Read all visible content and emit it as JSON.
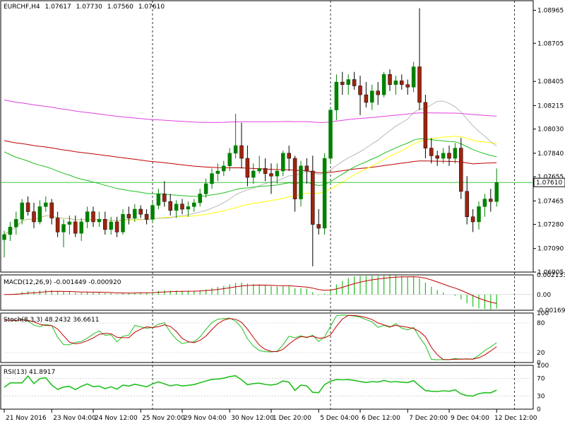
{
  "chart_data": {
    "type": "candlestick",
    "colors": {
      "bull": "#008000",
      "bear": "#a0240f",
      "frame": "#000000",
      "sma_fast": "#a9a9a9",
      "sma_mid": "#ffff00",
      "sma_slow": "#c00000",
      "sma_long": "#e040e0",
      "ema": "#20c020",
      "macd_hist": "#20c020",
      "macd_signal": "#c00000",
      "stoch_main": "#20c020",
      "stoch_signal": "#c00000",
      "rsi": "#20c020",
      "price_line": "#20c020"
    },
    "header": {
      "symbol": "EURCHF,H4",
      "open": "1.07617",
      "high": "1.07730",
      "low": "1.07560",
      "close": "1.07610"
    },
    "price_axis": {
      "min": 1.06905,
      "max": 1.0904,
      "ticks": [
        "1.08965",
        "1.08705",
        "1.08405",
        "1.08215",
        "1.08030",
        "1.07840",
        "1.07655",
        "1.07465",
        "1.07280",
        "1.07090",
        "1.06905"
      ],
      "current": "1.07610"
    },
    "x_labels": [
      "21 Nov 2016",
      "23 Nov 04:00",
      "24 Nov 12:00",
      "25 Nov 20:00",
      "29 Nov 04:00",
      "30 Nov 12:00",
      "1 Dec 20:00",
      "5 Dec 04:00",
      "6 Dec 12:00",
      "7 Dec 20:00",
      "9 Dec 04:00",
      "12 Dec 12:00"
    ],
    "period_separators": [
      25,
      55,
      86,
      133
    ],
    "candles": [
      [
        1.0716,
        1.0723,
        1.0702,
        1.072
      ],
      [
        1.072,
        1.073,
        1.0715,
        1.0726
      ],
      [
        1.0726,
        1.0738,
        1.072,
        1.0732
      ],
      [
        1.0732,
        1.0748,
        1.0728,
        1.0745
      ],
      [
        1.0745,
        1.075,
        1.0735,
        1.0738
      ],
      [
        1.0738,
        1.0745,
        1.0725,
        1.073
      ],
      [
        1.073,
        1.0747,
        1.0728,
        1.0742
      ],
      [
        1.0742,
        1.075,
        1.0738,
        1.0745
      ],
      [
        1.0745,
        1.0748,
        1.0728,
        1.0733
      ],
      [
        1.0733,
        1.0738,
        1.0718,
        1.0722
      ],
      [
        1.0722,
        1.0732,
        1.071,
        1.0728
      ],
      [
        1.0728,
        1.0735,
        1.072,
        1.073
      ],
      [
        1.073,
        1.0735,
        1.0718,
        1.0721
      ],
      [
        1.0721,
        1.0733,
        1.0715,
        1.073
      ],
      [
        1.073,
        1.0742,
        1.0725,
        1.0738
      ],
      [
        1.0738,
        1.0742,
        1.0726,
        1.073
      ],
      [
        1.073,
        1.0738,
        1.0726,
        1.0732
      ],
      [
        1.0732,
        1.0738,
        1.072,
        1.0724
      ],
      [
        1.0724,
        1.0734,
        1.072,
        1.073
      ],
      [
        1.073,
        1.0734,
        1.0718,
        1.0722
      ],
      [
        1.0722,
        1.074,
        1.072,
        1.0736
      ],
      [
        1.0736,
        1.0742,
        1.0728,
        1.0733
      ],
      [
        1.0733,
        1.0744,
        1.073,
        1.074
      ],
      [
        1.074,
        1.0743,
        1.0733,
        1.0736
      ],
      [
        1.0736,
        1.074,
        1.0728,
        1.0732
      ],
      [
        1.0732,
        1.0746,
        1.0729,
        1.0743
      ],
      [
        1.0743,
        1.0756,
        1.074,
        1.0752
      ],
      [
        1.0752,
        1.0762,
        1.0742,
        1.0746
      ],
      [
        1.0746,
        1.0752,
        1.0735,
        1.0739
      ],
      [
        1.0739,
        1.0747,
        1.0733,
        1.0744
      ],
      [
        1.0744,
        1.0748,
        1.0736,
        1.074
      ],
      [
        1.074,
        1.0746,
        1.0734,
        1.0742
      ],
      [
        1.0742,
        1.0748,
        1.0738,
        1.0745
      ],
      [
        1.0745,
        1.0756,
        1.0742,
        1.0752
      ],
      [
        1.0752,
        1.0764,
        1.0749,
        1.076
      ],
      [
        1.076,
        1.0772,
        1.0756,
        1.0768
      ],
      [
        1.0768,
        1.0776,
        1.0762,
        1.077
      ],
      [
        1.077,
        1.0778,
        1.0766,
        1.0774
      ],
      [
        1.0774,
        1.0788,
        1.077,
        1.0784
      ],
      [
        1.0784,
        1.0815,
        1.078,
        1.079
      ],
      [
        1.079,
        1.0808,
        1.0772,
        1.078
      ],
      [
        1.078,
        1.079,
        1.0758,
        1.0765
      ],
      [
        1.0765,
        1.0776,
        1.076,
        1.077
      ],
      [
        1.077,
        1.0782,
        1.0768,
        1.0772
      ],
      [
        1.0772,
        1.078,
        1.0762,
        1.0768
      ],
      [
        1.0768,
        1.0776,
        1.0752,
        1.0766
      ],
      [
        1.0766,
        1.0776,
        1.076,
        1.077
      ],
      [
        1.077,
        1.0786,
        1.0766,
        1.0784
      ],
      [
        1.0784,
        1.079,
        1.077,
        1.078
      ],
      [
        1.078,
        1.0782,
        1.0738,
        1.0748
      ],
      [
        1.0748,
        1.0778,
        1.0742,
        1.0774
      ],
      [
        1.0774,
        1.078,
        1.076,
        1.077
      ],
      [
        1.077,
        1.0782,
        1.0695,
        1.0728
      ],
      [
        1.0728,
        1.074,
        1.072,
        1.0725
      ],
      [
        1.0725,
        1.0784,
        1.072,
        1.078
      ],
      [
        1.078,
        1.082,
        1.0776,
        1.0818
      ],
      [
        1.0818,
        1.0846,
        1.081,
        1.084
      ],
      [
        1.084,
        1.0848,
        1.083,
        1.0838
      ],
      [
        1.0838,
        1.0846,
        1.083,
        1.0842
      ],
      [
        1.0842,
        1.0848,
        1.0834,
        1.0837
      ],
      [
        1.0837,
        1.0845,
        1.0814,
        1.083
      ],
      [
        1.083,
        1.084,
        1.082,
        1.0824
      ],
      [
        1.0824,
        1.0838,
        1.0818,
        1.0833
      ],
      [
        1.0833,
        1.084,
        1.0822,
        1.083
      ],
      [
        1.083,
        1.0848,
        1.0828,
        1.0846
      ],
      [
        1.0846,
        1.085,
        1.0833,
        1.0838
      ],
      [
        1.0838,
        1.0845,
        1.083,
        1.0841
      ],
      [
        1.0841,
        1.0846,
        1.0834,
        1.0838
      ],
      [
        1.0838,
        1.0842,
        1.083,
        1.0836
      ],
      [
        1.0836,
        1.0856,
        1.0832,
        1.0852
      ],
      [
        1.0852,
        1.0898,
        1.0818,
        1.0824
      ],
      [
        1.0824,
        1.083,
        1.078,
        1.0788
      ],
      [
        1.0788,
        1.0796,
        1.0776,
        1.0782
      ],
      [
        1.0782,
        1.0786,
        1.0774,
        1.078
      ],
      [
        1.078,
        1.0788,
        1.0776,
        1.0784
      ],
      [
        1.0784,
        1.079,
        1.0774,
        1.078
      ],
      [
        1.078,
        1.0792,
        1.0776,
        1.0788
      ],
      [
        1.0788,
        1.0796,
        1.0748,
        1.0754
      ],
      [
        1.0754,
        1.0766,
        1.0728,
        1.0734
      ],
      [
        1.0734,
        1.074,
        1.0722,
        1.073
      ],
      [
        1.073,
        1.0746,
        1.0724,
        1.0742
      ],
      [
        1.0742,
        1.0752,
        1.0734,
        1.0748
      ],
      [
        1.0748,
        1.0756,
        1.0738,
        1.0746
      ],
      [
        1.0746,
        1.0772,
        1.0742,
        1.0761
      ]
    ],
    "indicators": {
      "macd": {
        "label": "MACD(12,26,9) -0.001449 -0.000920",
        "ticks": [
          "0.002133",
          "0.00",
          "-0.001698"
        ]
      },
      "stoch": {
        "label": "Stoch(8,3,3) 48.2432 36.6611",
        "ticks": [
          "100",
          "80",
          "20",
          "0"
        ]
      },
      "rsi": {
        "label": "RSI(13) 41.8917",
        "ticks": [
          "100",
          "70",
          "30",
          "0"
        ]
      }
    }
  }
}
